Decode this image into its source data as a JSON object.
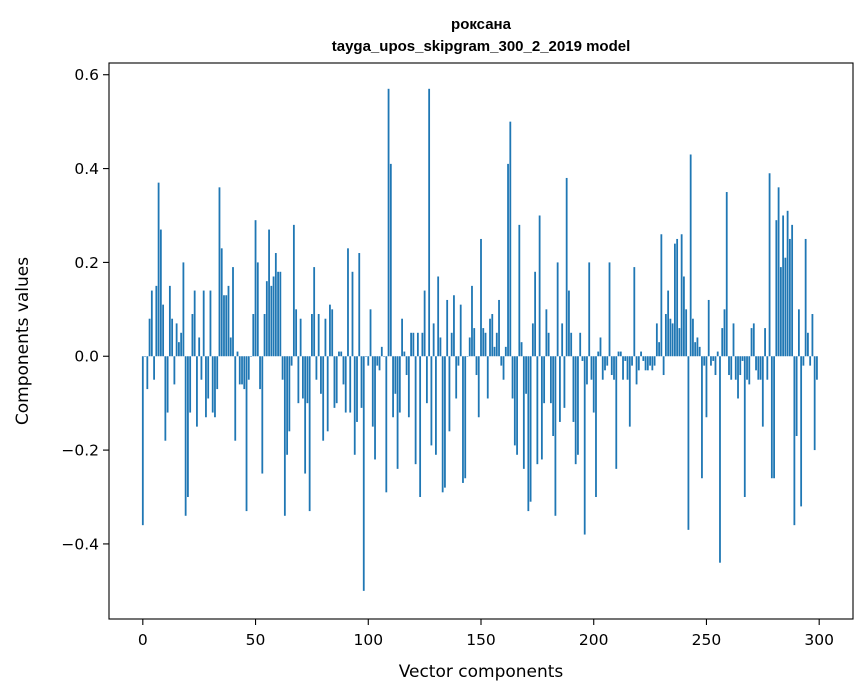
{
  "chart_data": {
    "type": "bar",
    "title": "роксана",
    "subtitle": "tayga_upos_skipgram_300_2_2019 model",
    "xlabel": "Vector components",
    "ylabel": "Components values",
    "xlim": [
      -15,
      315
    ],
    "ylim": [
      -0.56,
      0.625
    ],
    "xticks": [
      0,
      50,
      100,
      150,
      200,
      250,
      300
    ],
    "yticks": [
      -0.4,
      -0.2,
      0.0,
      0.2,
      0.4,
      0.6
    ],
    "ytick_labels": [
      "−0.4",
      "−0.2",
      "0.0",
      "0.2",
      "0.4",
      "0.6"
    ],
    "grid": false,
    "bar_color": "#1f77b4",
    "values": [
      -0.36,
      0.0,
      -0.07,
      0.08,
      0.14,
      -0.05,
      0.15,
      0.37,
      0.27,
      0.11,
      -0.18,
      -0.12,
      0.15,
      0.08,
      -0.06,
      0.07,
      0.03,
      0.05,
      0.2,
      -0.34,
      -0.3,
      -0.12,
      0.09,
      0.14,
      -0.15,
      0.04,
      -0.05,
      0.14,
      -0.13,
      -0.09,
      0.14,
      -0.12,
      -0.13,
      -0.07,
      0.36,
      0.23,
      0.13,
      0.13,
      0.15,
      0.04,
      0.19,
      -0.18,
      0.01,
      -0.06,
      -0.06,
      -0.07,
      -0.33,
      -0.05,
      0.0,
      0.09,
      0.29,
      0.2,
      -0.07,
      -0.25,
      0.09,
      0.16,
      0.27,
      0.15,
      0.17,
      0.22,
      0.18,
      0.18,
      -0.05,
      -0.34,
      -0.21,
      -0.16,
      -0.02,
      0.28,
      0.1,
      -0.1,
      0.08,
      -0.09,
      -0.25,
      -0.1,
      -0.33,
      0.09,
      0.19,
      -0.05,
      0.09,
      -0.08,
      -0.18,
      0.08,
      -0.16,
      0.11,
      0.1,
      -0.11,
      -0.1,
      0.01,
      0.01,
      -0.06,
      -0.12,
      0.23,
      -0.12,
      0.18,
      -0.21,
      -0.14,
      0.22,
      -0.11,
      -0.5,
      0.0,
      -0.02,
      0.1,
      -0.15,
      -0.22,
      -0.02,
      -0.03,
      0.02,
      0.0,
      -0.29,
      0.57,
      0.41,
      -0.13,
      -0.08,
      -0.24,
      -0.12,
      0.08,
      0.01,
      -0.04,
      -0.13,
      0.05,
      0.05,
      -0.23,
      0.05,
      -0.3,
      0.05,
      0.14,
      -0.1,
      0.57,
      -0.19,
      0.07,
      -0.21,
      0.17,
      0.04,
      -0.29,
      -0.28,
      0.12,
      -0.16,
      0.05,
      0.13,
      -0.09,
      -0.02,
      0.11,
      -0.27,
      -0.26,
      0.0,
      0.04,
      0.15,
      0.06,
      -0.04,
      -0.13,
      0.25,
      0.06,
      0.05,
      -0.09,
      0.08,
      0.09,
      0.02,
      0.05,
      0.12,
      -0.02,
      -0.05,
      0.02,
      0.41,
      0.5,
      -0.09,
      -0.19,
      -0.21,
      0.28,
      0.03,
      -0.24,
      -0.08,
      -0.33,
      -0.31,
      0.07,
      0.18,
      -0.23,
      0.3,
      -0.22,
      -0.1,
      0.1,
      0.05,
      -0.1,
      -0.17,
      -0.34,
      0.2,
      -0.14,
      0.07,
      -0.11,
      0.38,
      0.14,
      0.05,
      -0.14,
      -0.23,
      -0.21,
      0.05,
      -0.01,
      -0.38,
      -0.06,
      0.2,
      -0.05,
      -0.12,
      -0.3,
      0.01,
      0.04,
      -0.05,
      -0.03,
      -0.02,
      0.2,
      -0.04,
      -0.05,
      -0.24,
      0.01,
      0.01,
      -0.05,
      -0.01,
      -0.05,
      -0.15,
      -0.02,
      0.19,
      -0.06,
      -0.03,
      0.01,
      -0.01,
      -0.03,
      -0.03,
      -0.02,
      -0.03,
      -0.02,
      0.07,
      0.03,
      0.26,
      -0.04,
      0.09,
      0.14,
      0.08,
      0.07,
      0.24,
      0.25,
      0.06,
      0.26,
      0.17,
      0.1,
      -0.37,
      0.43,
      0.08,
      0.03,
      0.04,
      0.02,
      -0.26,
      -0.02,
      -0.13,
      0.12,
      -0.02,
      -0.01,
      -0.04,
      0.01,
      -0.44,
      0.06,
      0.1,
      0.35,
      -0.04,
      -0.05,
      0.07,
      -0.05,
      -0.09,
      -0.04,
      -0.01,
      -0.3,
      -0.05,
      -0.06,
      0.06,
      0.07,
      -0.03,
      -0.05,
      -0.05,
      -0.15,
      0.06,
      -0.05,
      0.39,
      -0.26,
      -0.26,
      0.29,
      0.36,
      0.19,
      0.3,
      0.21,
      0.31,
      0.25,
      0.28,
      -0.36,
      -0.17,
      0.1,
      -0.32,
      -0.02,
      0.25,
      0.05,
      -0.02,
      0.09,
      -0.2,
      -0.05
    ]
  }
}
